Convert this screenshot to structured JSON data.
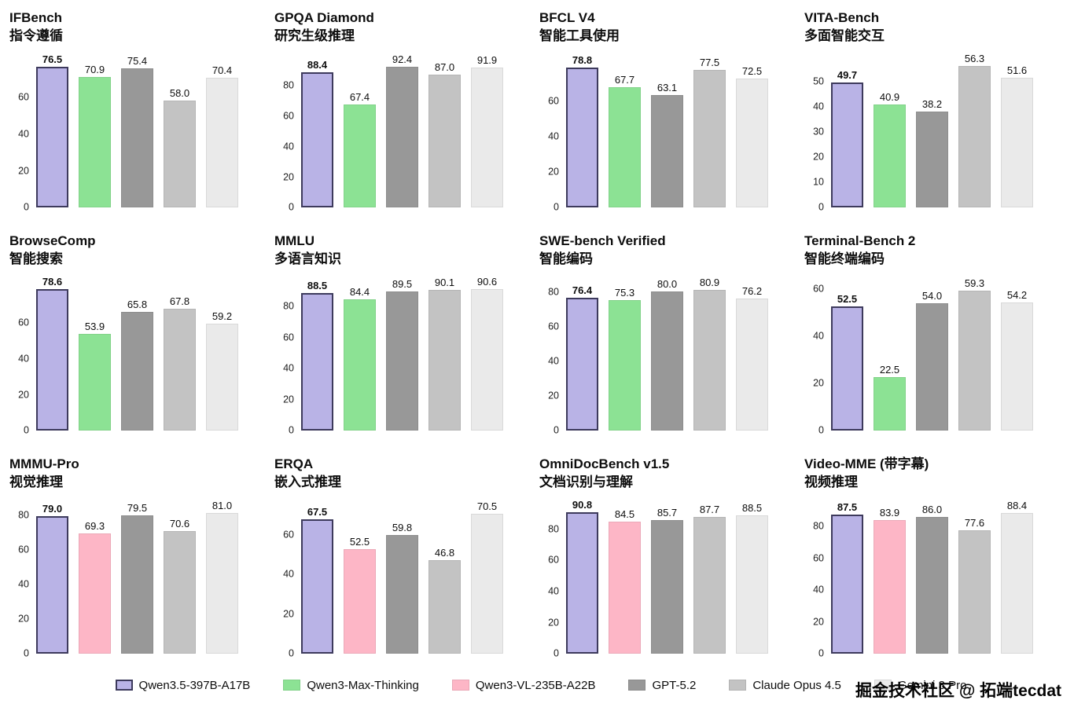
{
  "page": {
    "watermark": "掘金技术社区 @ 拓端tecdat"
  },
  "colors": {
    "qwen35": {
      "fill": "#b9b3e6",
      "border": "#3d3a5c"
    },
    "qwenmax": {
      "fill": "#8ce294"
    },
    "qwenvl": {
      "fill": "#fdb6c6"
    },
    "gpt": {
      "fill": "#989898"
    },
    "claude": {
      "fill": "#c3c3c3"
    },
    "gemini": {
      "fill": "#eaeaea"
    }
  },
  "legend": [
    {
      "key": "qwen35",
      "label": "Qwen3.5-397B-A17B"
    },
    {
      "key": "qwenmax",
      "label": "Qwen3-Max-Thinking"
    },
    {
      "key": "qwenvl",
      "label": "Qwen3-VL-235B-A22B"
    },
    {
      "key": "gpt",
      "label": "GPT-5.2"
    },
    {
      "key": "claude",
      "label": "Claude Opus 4.5"
    },
    {
      "key": "gemini",
      "label": "Gemini 3 Pro"
    }
  ],
  "chart_data": [
    {
      "type": "bar",
      "title": "IFBench",
      "subtitle": "指令遵循",
      "series_keys": [
        "qwen35",
        "qwenmax",
        "gpt",
        "claude",
        "gemini"
      ],
      "values": [
        76.5,
        70.9,
        75.4,
        58.0,
        70.4
      ],
      "ticks": [
        0,
        20,
        40,
        60
      ],
      "ylim": [
        0,
        82
      ],
      "grid": false,
      "legend_position": "bottom"
    },
    {
      "type": "bar",
      "title": "GPQA Diamond",
      "subtitle": "研究生级推理",
      "series_keys": [
        "qwen35",
        "qwenmax",
        "gpt",
        "claude",
        "gemini"
      ],
      "values": [
        88.4,
        67.4,
        92.4,
        87.0,
        91.9
      ],
      "ticks": [
        0,
        20,
        40,
        60,
        80
      ],
      "ylim": [
        0,
        99
      ],
      "grid": false,
      "legend_position": "bottom"
    },
    {
      "type": "bar",
      "title": "BFCL V4",
      "subtitle": "智能工具使用",
      "series_keys": [
        "qwen35",
        "qwenmax",
        "gpt",
        "claude",
        "gemini"
      ],
      "values": [
        78.8,
        67.7,
        63.1,
        77.5,
        72.5
      ],
      "ticks": [
        0,
        20,
        40,
        60
      ],
      "ylim": [
        0,
        85
      ],
      "grid": false,
      "legend_position": "bottom"
    },
    {
      "type": "bar",
      "title": "VITA-Bench",
      "subtitle": "多面智能交互",
      "series_keys": [
        "qwen35",
        "qwenmax",
        "gpt",
        "claude",
        "gemini"
      ],
      "values": [
        49.7,
        40.9,
        38.2,
        56.3,
        51.6
      ],
      "ticks": [
        0,
        10,
        20,
        30,
        40,
        50
      ],
      "ylim": [
        0,
        60
      ],
      "grid": false,
      "legend_position": "bottom"
    },
    {
      "type": "bar",
      "title": "BrowseComp",
      "subtitle": "智能搜索",
      "series_keys": [
        "qwen35",
        "qwenmax",
        "gpt",
        "claude",
        "gemini"
      ],
      "values": [
        78.6,
        53.9,
        65.8,
        67.8,
        59.2
      ],
      "ticks": [
        0,
        20,
        40,
        60
      ],
      "ylim": [
        0,
        84
      ],
      "grid": false,
      "legend_position": "bottom"
    },
    {
      "type": "bar",
      "title": "MMLU",
      "subtitle": "多语言知识",
      "series_keys": [
        "qwen35",
        "qwenmax",
        "gpt",
        "claude",
        "gemini"
      ],
      "values": [
        88.5,
        84.4,
        89.5,
        90.1,
        90.6
      ],
      "ticks": [
        0,
        20,
        40,
        60,
        80
      ],
      "ylim": [
        0,
        97
      ],
      "grid": false,
      "legend_position": "bottom"
    },
    {
      "type": "bar",
      "title": "SWE-bench Verified",
      "subtitle": "智能编码",
      "series_keys": [
        "qwen35",
        "qwenmax",
        "gpt",
        "claude",
        "gemini"
      ],
      "values": [
        76.4,
        75.3,
        80.0,
        80.9,
        76.2
      ],
      "ticks": [
        0,
        20,
        40,
        60,
        80
      ],
      "ylim": [
        0,
        87
      ],
      "grid": false,
      "legend_position": "bottom"
    },
    {
      "type": "bar",
      "title": "Terminal-Bench 2",
      "subtitle": "智能终端编码",
      "series_keys": [
        "qwen35",
        "qwenmax",
        "gpt",
        "claude",
        "gemini"
      ],
      "values": [
        52.5,
        22.5,
        54.0,
        59.3,
        54.2
      ],
      "ticks": [
        0,
        20,
        40,
        60
      ],
      "ylim": [
        0,
        64
      ],
      "grid": false,
      "legend_position": "bottom"
    },
    {
      "type": "bar",
      "title": "MMMU-Pro",
      "subtitle": "视觉推理",
      "series_keys": [
        "qwen35",
        "qwenvl",
        "gpt",
        "claude",
        "gemini"
      ],
      "values": [
        79.0,
        69.3,
        79.5,
        70.6,
        81.0
      ],
      "ticks": [
        0,
        20,
        40,
        60,
        80
      ],
      "ylim": [
        0,
        87
      ],
      "grid": false,
      "legend_position": "bottom"
    },
    {
      "type": "bar",
      "title": "ERQA",
      "subtitle": "嵌入式推理",
      "series_keys": [
        "qwen35",
        "qwenvl",
        "gpt",
        "claude",
        "gemini"
      ],
      "values": [
        67.5,
        52.5,
        59.8,
        46.8,
        70.5
      ],
      "ticks": [
        0,
        20,
        40,
        60
      ],
      "ylim": [
        0,
        76
      ],
      "grid": false,
      "legend_position": "bottom"
    },
    {
      "type": "bar",
      "title": "OmniDocBench v1.5",
      "subtitle": "文档识别与理解",
      "series_keys": [
        "qwen35",
        "qwenvl",
        "gpt",
        "claude",
        "gemini"
      ],
      "values": [
        90.8,
        84.5,
        85.7,
        87.7,
        88.5
      ],
      "ticks": [
        0,
        20,
        40,
        60,
        80
      ],
      "ylim": [
        0,
        97
      ],
      "grid": false,
      "legend_position": "bottom"
    },
    {
      "type": "bar",
      "title": "Video-MME (带字幕)",
      "subtitle": "视频推理",
      "series_keys": [
        "qwen35",
        "qwenvl",
        "gpt",
        "claude",
        "gemini"
      ],
      "values": [
        87.5,
        83.9,
        86.0,
        77.6,
        88.4
      ],
      "ticks": [
        0,
        20,
        40,
        60,
        80
      ],
      "ylim": [
        0,
        95
      ],
      "grid": false,
      "legend_position": "bottom"
    }
  ]
}
